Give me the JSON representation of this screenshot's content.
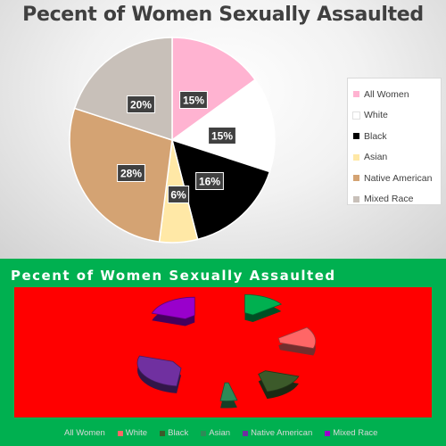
{
  "chart_data": [
    {
      "type": "pie",
      "title": "Pecent of Women Sexually Assaulted",
      "categories": [
        "All Women",
        "White",
        "Black",
        "Asian",
        "Native American",
        "Mixed Race"
      ],
      "values": [
        15,
        15,
        16,
        6,
        28,
        20
      ],
      "data_labels": [
        "15%",
        "15%",
        "16%",
        "6%",
        "28%",
        "20%"
      ],
      "colors": [
        "#ffb3d1",
        "#ffffff",
        "#000000",
        "#ffe8a6",
        "#d4a373",
        "#c8c0b9"
      ],
      "legend_position": "right"
    },
    {
      "type": "pie",
      "title": "Pecent of Women Sexually Assaulted",
      "categories": [
        "All Women",
        "White",
        "Black",
        "Asian",
        "Native American",
        "Mixed Race"
      ],
      "values": [
        15,
        15,
        16,
        6,
        28,
        20
      ],
      "colors": [
        "#00b050",
        "#ff6666",
        "#3c5a2a",
        "#2e8b57",
        "#7030a0",
        "#9900cc"
      ],
      "style": "3d exploded",
      "legend_position": "bottom"
    }
  ]
}
